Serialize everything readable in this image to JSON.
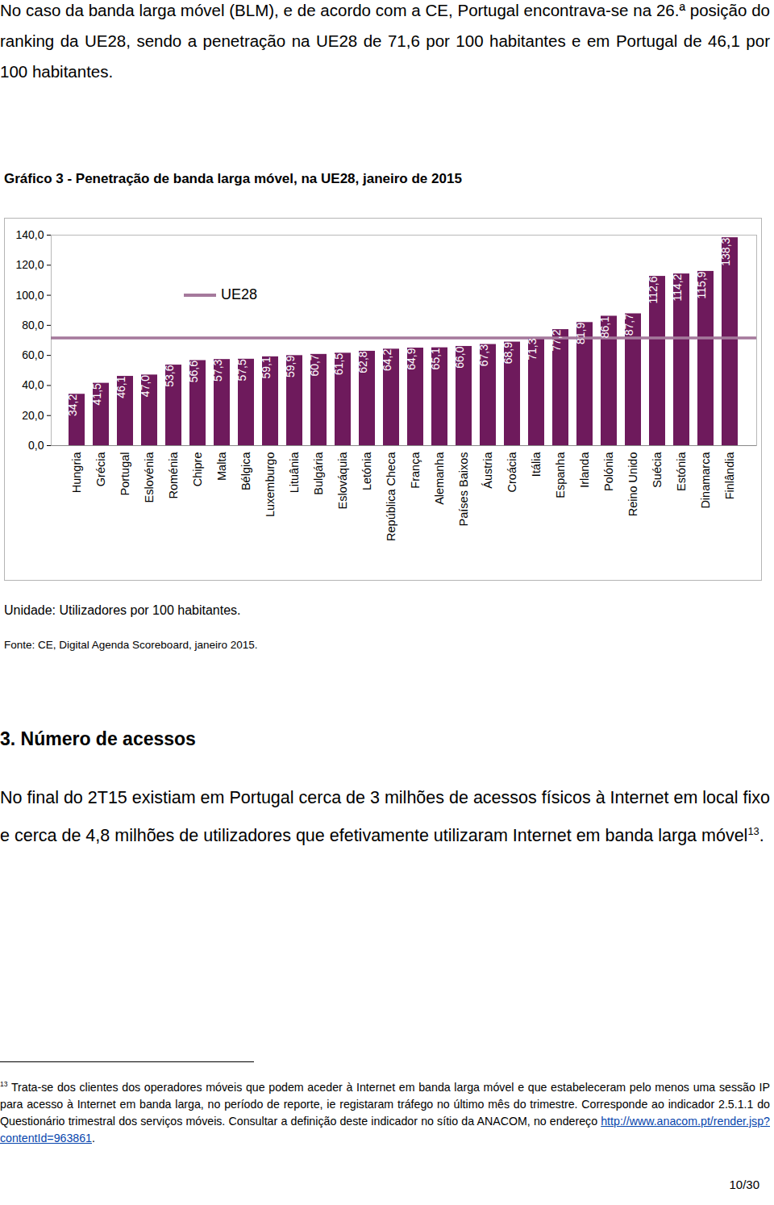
{
  "intro": "No caso da banda larga móvel (BLM), e de acordo com a CE, Portugal encontrava-se na 26.ª posição do ranking da UE28, sendo a penetração na UE28 de 71,6 por 100 habitantes e em Portugal de 46,1 por 100 habitantes.",
  "chart_data": {
    "type": "bar",
    "title": "Gráfico 3 - Penetração de banda larga móvel, na UE28, janeiro de 2015",
    "categories": [
      "Hungria",
      "Grécia",
      "Portugal",
      "Eslovénia",
      "Roménia",
      "Chipre",
      "Malta",
      "Bélgica",
      "Luxemburgo",
      "Lituânia",
      "Bulgária",
      "Eslováquia",
      "Letónia",
      "República Checa",
      "França",
      "Alemanha",
      "Países Baixos",
      "Áustria",
      "Croácia",
      "Itália",
      "Espanha",
      "Irlanda",
      "Polónia",
      "Reino Unido",
      "Suécia",
      "Estónia",
      "Dinamarca",
      "Finlândia"
    ],
    "values": [
      34.2,
      41.5,
      46.1,
      47.0,
      53.6,
      56.6,
      57.3,
      57.5,
      59.1,
      59.9,
      60.7,
      61.5,
      62.8,
      64.2,
      64.9,
      65.1,
      66.0,
      67.3,
      68.9,
      71.3,
      77.2,
      81.9,
      86.1,
      87.7,
      112.6,
      114.2,
      115.9,
      138.3
    ],
    "value_labels": [
      "34,2",
      "41,5",
      "46,1",
      "47,0",
      "53,6",
      "56,6",
      "57,3",
      "57,5",
      "59,1",
      "59,9",
      "60,7",
      "61,5",
      "62,8",
      "64,2",
      "64,9",
      "65,1",
      "66,0",
      "67,3",
      "68,9",
      "71,3",
      "77,2",
      "81,9",
      "86,1",
      "87,7",
      "112,6",
      "114,2",
      "115,9",
      "138,3"
    ],
    "color": "#6e1a5c",
    "data_labels": true,
    "reference_lines": [
      {
        "name": "UE28",
        "value": 71.6,
        "color": "#a5799c"
      }
    ],
    "legend": "top-left",
    "ylim": [
      0,
      140
    ],
    "yticks": [
      {
        "value": 0,
        "label": "0,0"
      },
      {
        "value": 20,
        "label": "20,0"
      },
      {
        "value": 40,
        "label": "40,0"
      },
      {
        "value": 60,
        "label": "60,0"
      },
      {
        "value": 80,
        "label": "80,0"
      },
      {
        "value": 100,
        "label": "100,0"
      },
      {
        "value": 120,
        "label": "120,0"
      },
      {
        "value": 140,
        "label": "140,0"
      }
    ],
    "grid": false
  },
  "unit_note": "Unidade: Utilizadores por 100 habitantes.",
  "source_note": "Fonte: CE, Digital Agenda Scoreboard, janeiro 2015.",
  "section_heading": "3. Número de acessos",
  "paragraph": {
    "text": "No final do 2T15 existiam em Portugal cerca de 3 milhões de acessos físicos à Internet em local fixo e cerca de 4,8 milhões de utilizadores que efetivamente utilizaram Internet em banda larga móvel",
    "footnote_ref": "13",
    "end": "."
  },
  "footnote": {
    "number": "13",
    "text": "Trata-se dos clientes dos operadores móveis que podem aceder à Internet em banda larga móvel e que estabeleceram pelo menos uma sessão IP para acesso à Internet em banda larga, no período de reporte, ie registaram tráfego no último mês do trimestre. Corresponde ao indicador 2.5.1.1 do Questionário trimestral dos serviços móveis. Consultar a definição deste indicador no sítio da ANACOM, no endereço ",
    "link": "http://www.anacom.pt/render.jsp?contentId=963861",
    "end": "."
  },
  "page_number": "10/30"
}
